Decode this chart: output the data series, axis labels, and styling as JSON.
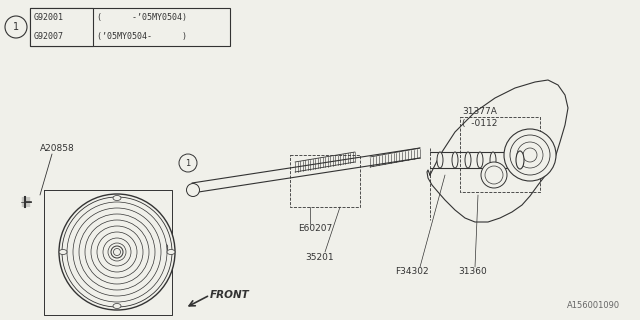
{
  "bg_color": "#f0f0ea",
  "line_color": "#333333",
  "table_rows": [
    {
      "code": "G92001",
      "desc": "(      -’05MY0504)"
    },
    {
      "code": "G92007",
      "desc": "(’05MY0504-      )"
    }
  ],
  "watermark": "A156001090",
  "front_label": "FRONT"
}
